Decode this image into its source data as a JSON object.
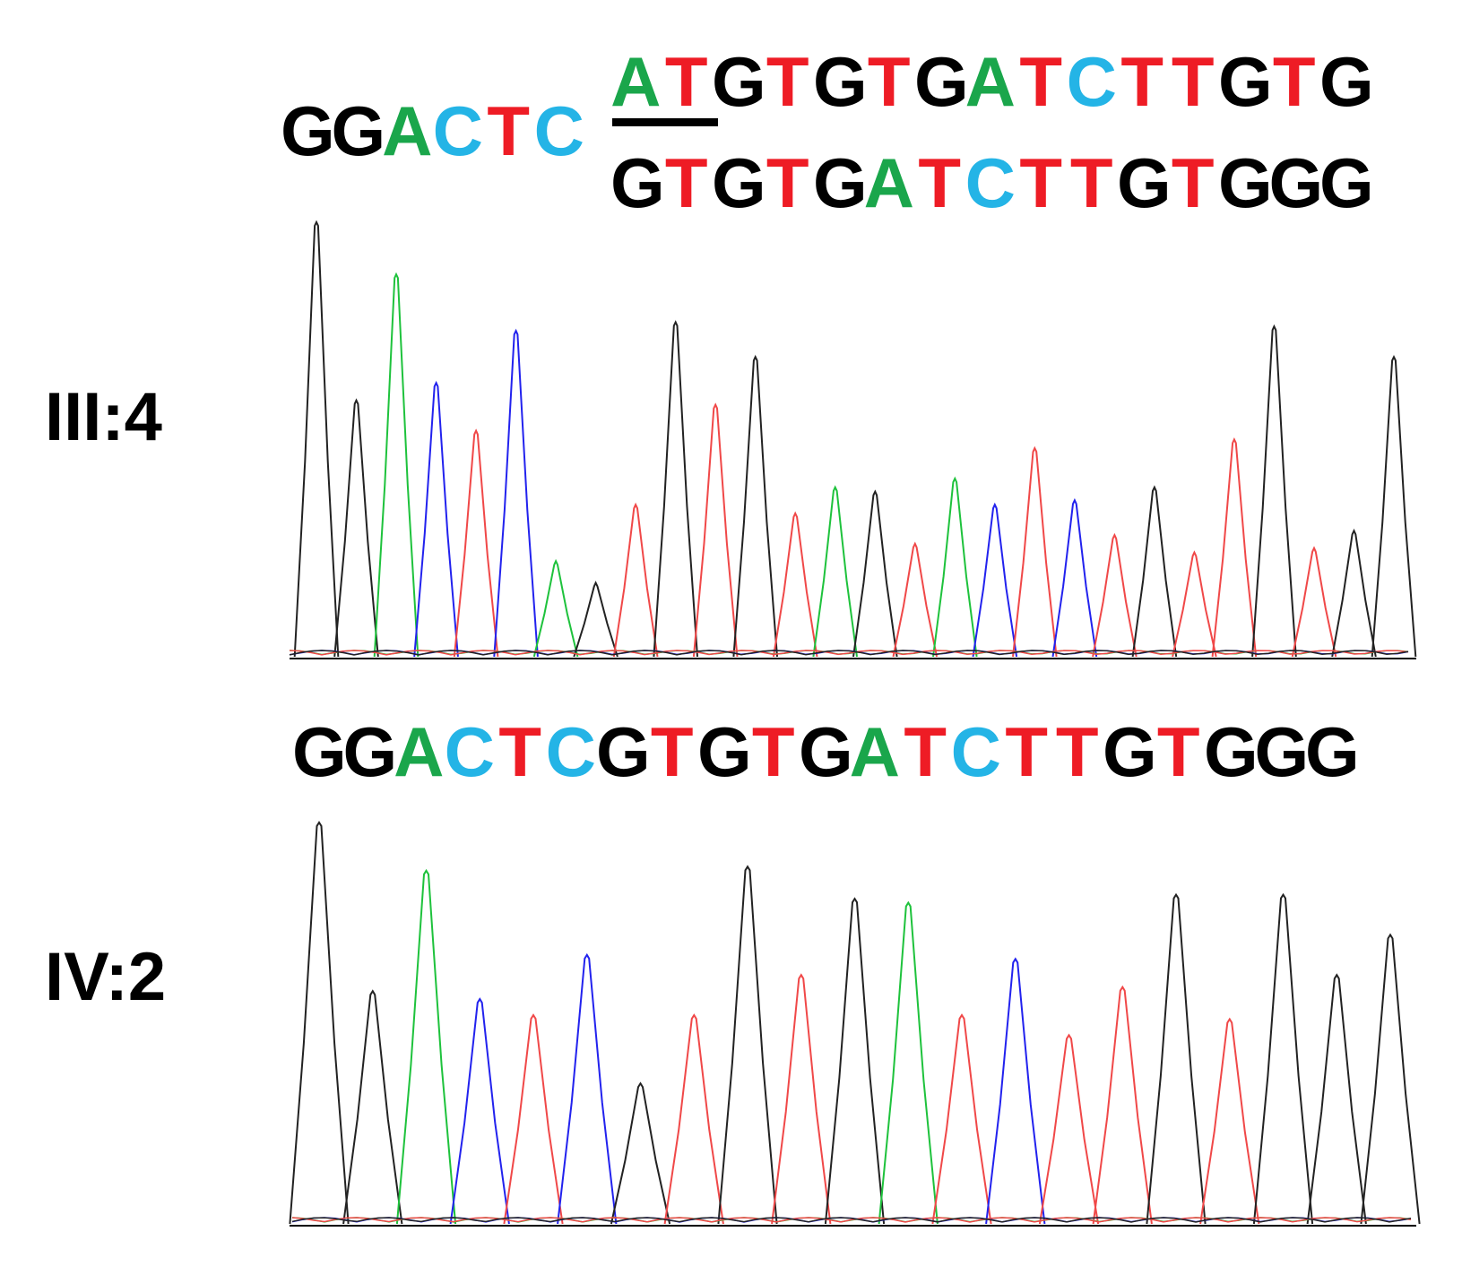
{
  "colors": {
    "A": "#1aa64b",
    "C": "#24b4e6",
    "G": "#000000",
    "T": "#ee1c25"
  },
  "trace_colors": {
    "A": "#1ec23c",
    "C": "#2222ee",
    "G": "#222222",
    "T": "#f04848"
  },
  "panels": [
    {
      "sample": "III:4",
      "prefix": "GGACTC",
      "allele_1": "ATGTGTGATCTTGTG",
      "allele_2": "GTGTGATCTTGTGGG",
      "insertion_underline": "AT",
      "peaks": [
        {
          "b": "G",
          "h": 1.0
        },
        {
          "b": "G",
          "h": 0.59
        },
        {
          "b": "A",
          "h": 0.88
        },
        {
          "b": "C",
          "h": 0.63
        },
        {
          "b": "T",
          "h": 0.52
        },
        {
          "b": "C",
          "h": 0.75
        },
        {
          "b": "A",
          "h": 0.22
        },
        {
          "b": "G",
          "h": 0.17
        },
        {
          "b": "T",
          "h": 0.35
        },
        {
          "b": "G",
          "h": 0.77
        },
        {
          "b": "T",
          "h": 0.58
        },
        {
          "b": "G",
          "h": 0.69
        },
        {
          "b": "T",
          "h": 0.33
        },
        {
          "b": "A",
          "h": 0.39
        },
        {
          "b": "G",
          "h": 0.38
        },
        {
          "b": "T",
          "h": 0.26
        },
        {
          "b": "A",
          "h": 0.41
        },
        {
          "b": "C",
          "h": 0.35
        },
        {
          "b": "T",
          "h": 0.48
        },
        {
          "b": "C",
          "h": 0.36
        },
        {
          "b": "T",
          "h": 0.28
        },
        {
          "b": "G",
          "h": 0.39
        },
        {
          "b": "T",
          "h": 0.24
        },
        {
          "b": "T",
          "h": 0.5
        },
        {
          "b": "G",
          "h": 0.76
        },
        {
          "b": "T",
          "h": 0.25
        },
        {
          "b": "G",
          "h": 0.29
        },
        {
          "b": "G",
          "h": 0.69
        }
      ]
    },
    {
      "sample": "IV:2",
      "sequence": "GGACTCGTGTGATCTTGTGGG",
      "peaks": [
        {
          "b": "G",
          "h": 1.0
        },
        {
          "b": "G",
          "h": 0.58
        },
        {
          "b": "A",
          "h": 0.88
        },
        {
          "b": "C",
          "h": 0.56
        },
        {
          "b": "T",
          "h": 0.52
        },
        {
          "b": "C",
          "h": 0.67
        },
        {
          "b": "G",
          "h": 0.35
        },
        {
          "b": "T",
          "h": 0.52
        },
        {
          "b": "G",
          "h": 0.89
        },
        {
          "b": "T",
          "h": 0.62
        },
        {
          "b": "G",
          "h": 0.81
        },
        {
          "b": "A",
          "h": 0.8
        },
        {
          "b": "T",
          "h": 0.52
        },
        {
          "b": "C",
          "h": 0.66
        },
        {
          "b": "T",
          "h": 0.47
        },
        {
          "b": "T",
          "h": 0.59
        },
        {
          "b": "G",
          "h": 0.82
        },
        {
          "b": "T",
          "h": 0.51
        },
        {
          "b": "G",
          "h": 0.82
        },
        {
          "b": "G",
          "h": 0.62
        },
        {
          "b": "G",
          "h": 0.72
        }
      ]
    }
  ]
}
